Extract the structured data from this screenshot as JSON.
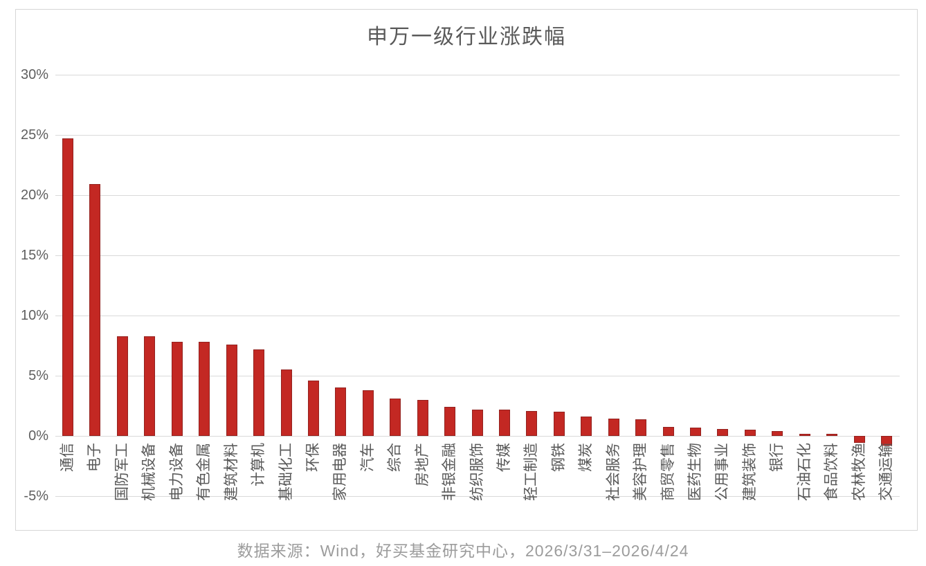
{
  "title": "申万一级行业涨跌幅",
  "footer": "数据来源：Wind，好买基金研究中心，2026/3/31–2026/4/24",
  "colors": {
    "bar_fill": "#c32823",
    "bar_border": "#93221f",
    "gridline": "#d9d9d9",
    "card_border": "#d6d6d6",
    "axis_text": "#5f5f5f",
    "title_text": "#595959",
    "footer_text": "#9c9c9c"
  },
  "chart_data": {
    "type": "bar",
    "title": "申万一级行业涨跌幅",
    "categories": [
      "通信",
      "电子",
      "国防军工",
      "机械设备",
      "电力设备",
      "有色金属",
      "建筑材料",
      "计算机",
      "基础化工",
      "环保",
      "家用电器",
      "汽车",
      "综合",
      "房地产",
      "非银金融",
      "纺织服饰",
      "传媒",
      "轻工制造",
      "钢铁",
      "煤炭",
      "社会服务",
      "美容护理",
      "商贸零售",
      "医药生物",
      "公用事业",
      "建筑装饰",
      "银行",
      "石油石化",
      "食品饮料",
      "农林牧渔",
      "交通运输"
    ],
    "values": [
      24.7,
      20.9,
      8.3,
      8.3,
      7.8,
      7.8,
      7.6,
      7.2,
      5.5,
      4.6,
      4.0,
      3.8,
      3.1,
      3.0,
      2.4,
      2.2,
      2.2,
      2.1,
      2.0,
      1.6,
      1.45,
      1.4,
      0.75,
      0.7,
      0.55,
      0.5,
      0.4,
      0.2,
      0.15,
      -0.6,
      -0.8
    ],
    "unit": "%",
    "xlabel": "",
    "ylabel": "",
    "ylim": [
      -5,
      30
    ],
    "yticks": [
      30,
      25,
      20,
      15,
      10,
      5,
      0,
      -5
    ],
    "ytick_labels": [
      "30%",
      "25%",
      "20%",
      "15%",
      "10%",
      "5%",
      "0%",
      "-5%"
    ],
    "grid": true,
    "legend_position": "none",
    "x_labels_rotation": -90,
    "source_note": "数据来源：Wind，好买基金研究中心，2026/3/31–2026/4/24"
  }
}
